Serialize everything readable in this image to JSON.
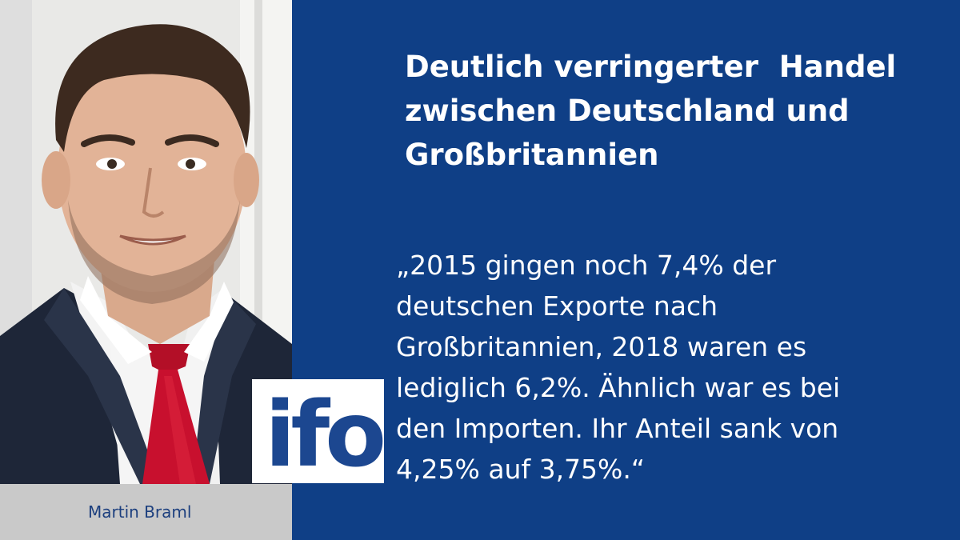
{
  "headline": {
    "lines": [
      "Deutlich verringerter  Handel",
      "zwischen Deutschland und",
      "Großbritannien"
    ]
  },
  "quote": {
    "lines": [
      "„2015 gingen noch 7,4% der",
      "deutschen Exporte nach",
      "Großbritannien, 2018 waren es",
      "lediglich 6,2%. Ähnlich war es bei",
      "den Importen. Ihr Anteil sank von",
      "4,25% auf 3,75%.“"
    ]
  },
  "person": {
    "name": "Martin Braml"
  },
  "logo": {
    "text": "ifo"
  },
  "colors": {
    "background": "#0f3f86",
    "logo_blue": "#1c4790",
    "name_bar": "#c9c9c9",
    "tie": "#c8102e"
  }
}
